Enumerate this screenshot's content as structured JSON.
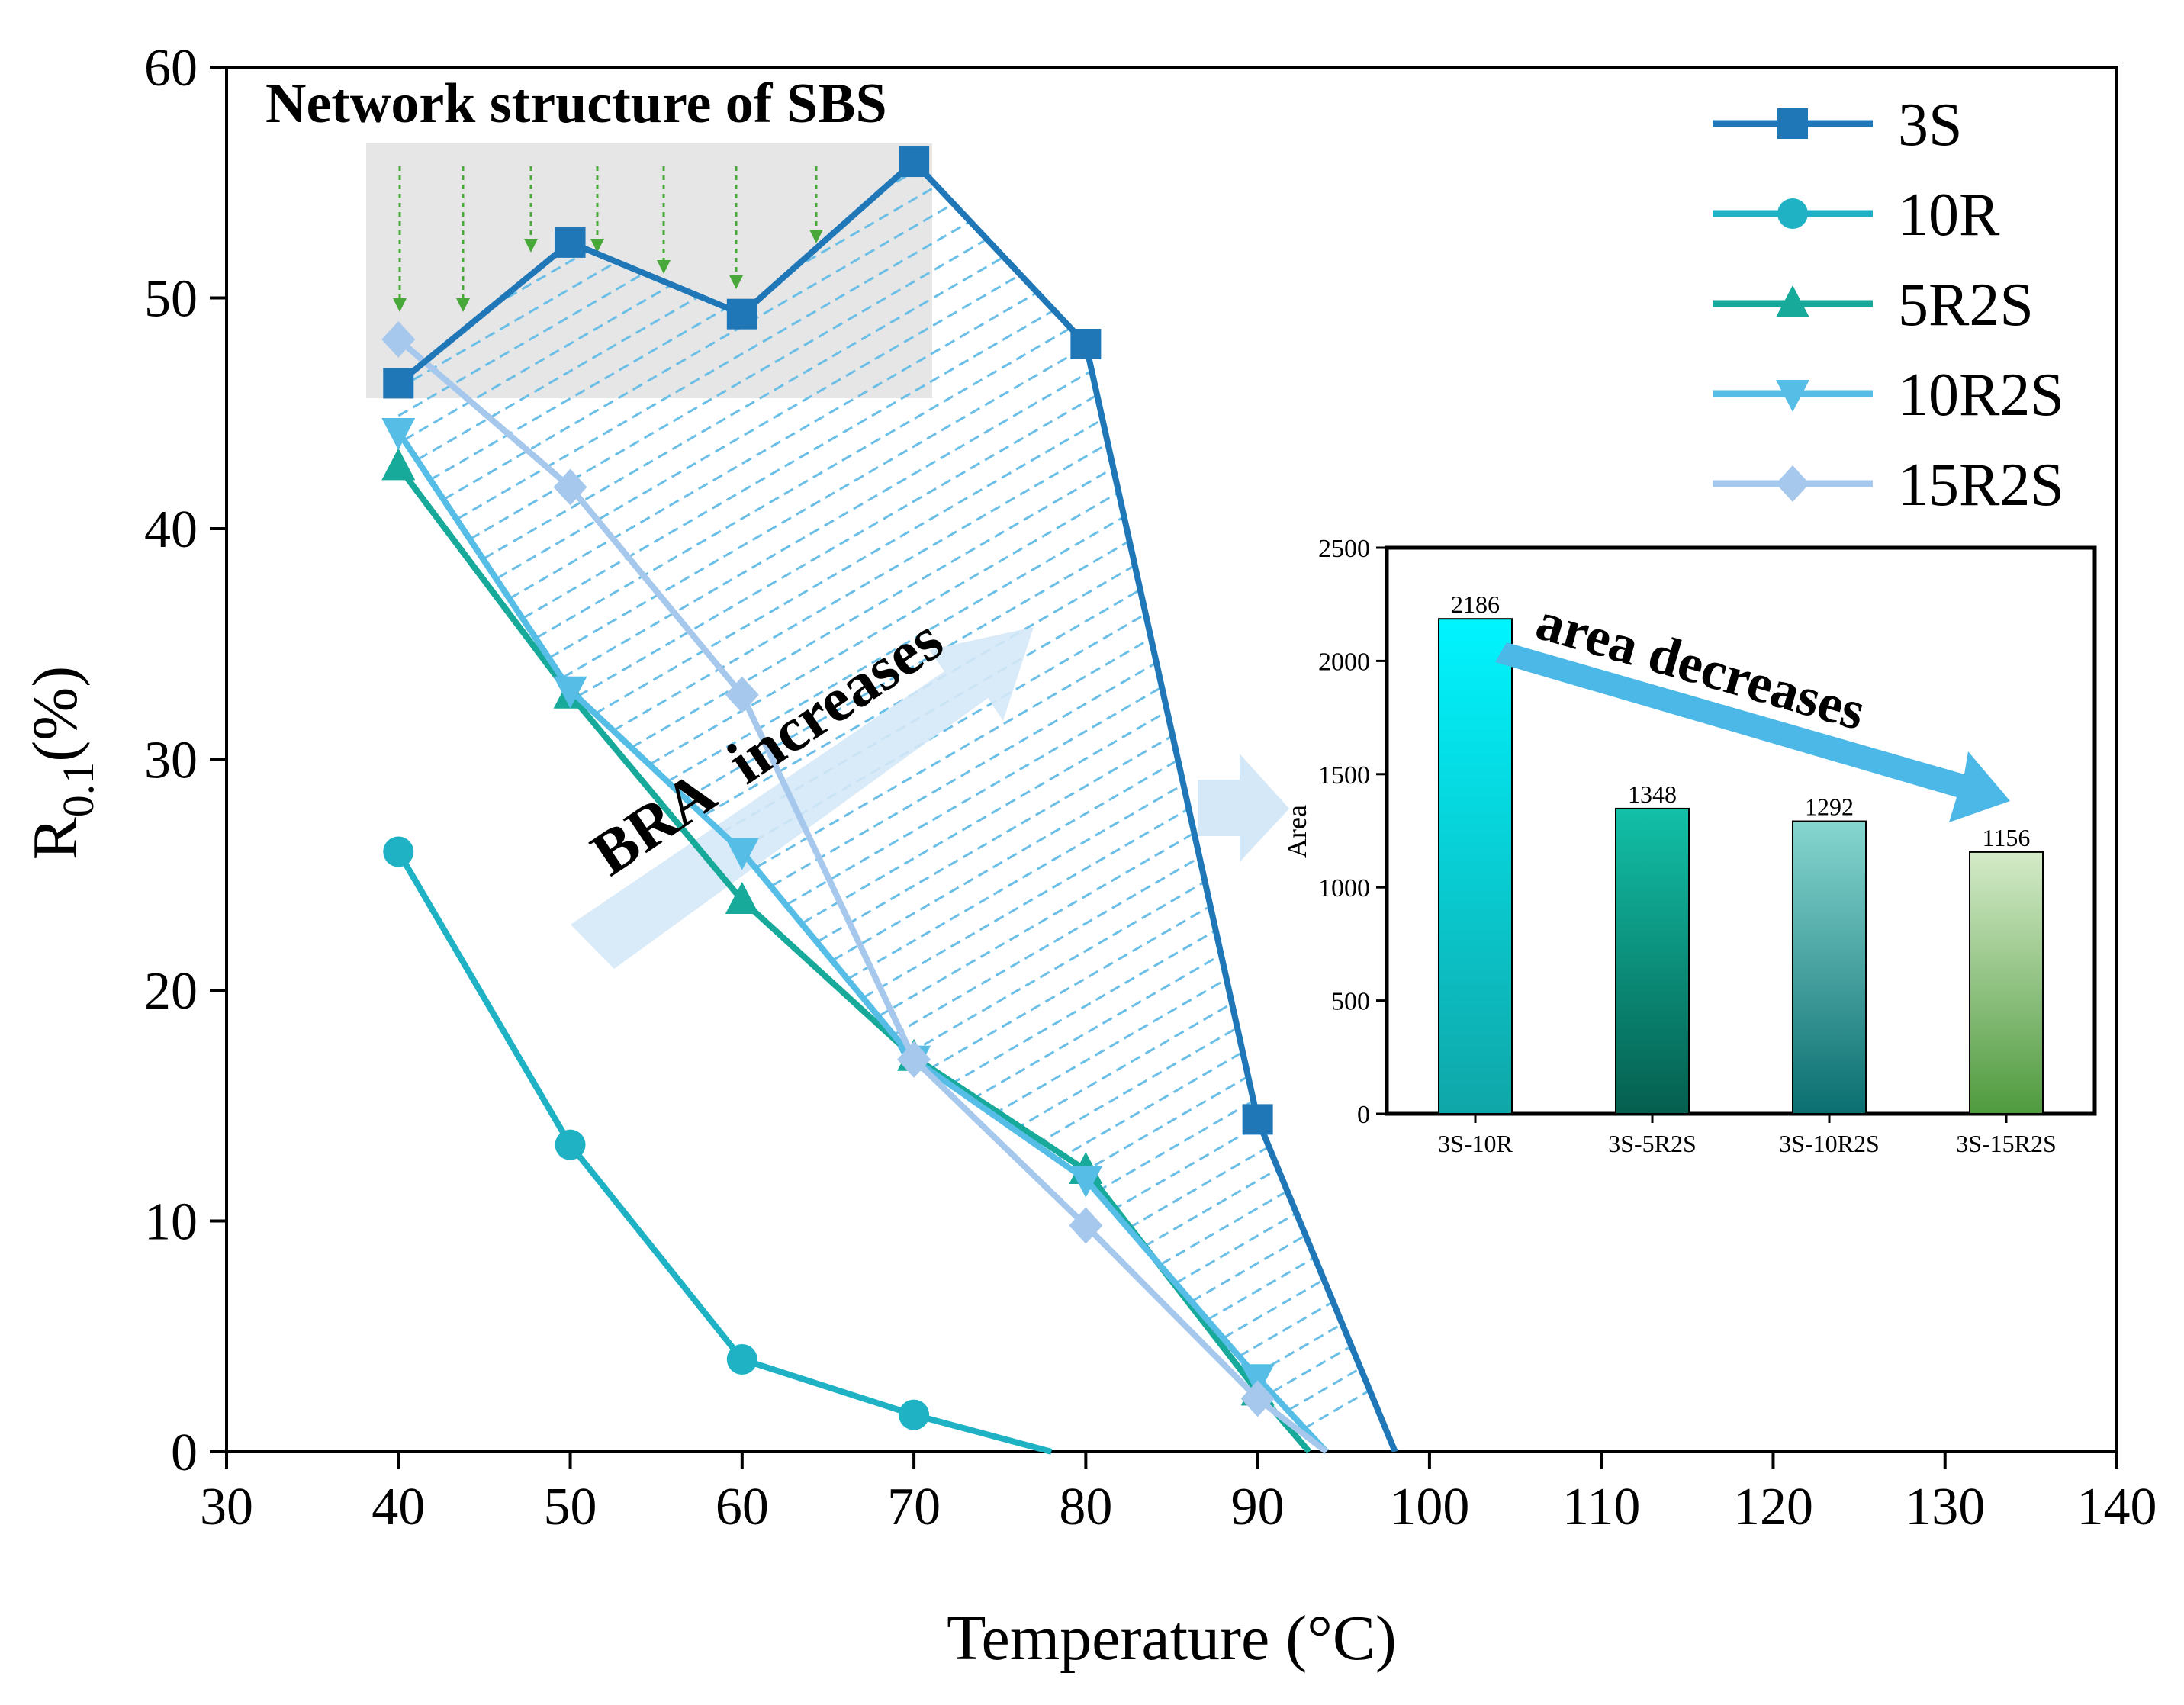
{
  "chart_data": [
    {
      "type": "line",
      "xlabel": "Temperature (°C)",
      "ylabel_main": "R",
      "ylabel_sub": "0.1",
      "ylabel_tail": "(%)",
      "xlim": [
        30,
        140
      ],
      "ylim": [
        0,
        60
      ],
      "xticks": [
        30,
        40,
        50,
        60,
        70,
        80,
        90,
        100,
        110,
        120,
        130,
        140
      ],
      "yticks": [
        0,
        10,
        20,
        30,
        40,
        50,
        60
      ],
      "legend_position": "top-right",
      "series": [
        {
          "name": "3S",
          "color": "#1f77b8",
          "marker": "square",
          "x": [
            40,
            50,
            60,
            70,
            80,
            90,
            98
          ],
          "y": [
            46.3,
            52.4,
            49.3,
            55.9,
            48.0,
            14.4,
            0
          ]
        },
        {
          "name": "10R",
          "color": "#1eb2c4",
          "marker": "circle",
          "x": [
            40,
            50,
            60,
            70,
            78
          ],
          "y": [
            26.0,
            13.3,
            4.0,
            1.6,
            0
          ]
        },
        {
          "name": "5R2S",
          "color": "#17a99a",
          "marker": "triangle-up",
          "x": [
            40,
            50,
            60,
            70,
            80,
            90,
            93
          ],
          "y": [
            42.7,
            32.8,
            23.9,
            17.1,
            12.2,
            2.6,
            0
          ]
        },
        {
          "name": "10R2S",
          "color": "#55bde6",
          "marker": "triangle-down",
          "x": [
            40,
            50,
            60,
            70,
            80,
            90,
            94
          ],
          "y": [
            44.2,
            33.0,
            26.0,
            17.0,
            11.8,
            3.2,
            0
          ]
        },
        {
          "name": "15R2S",
          "color": "#a6c8ec",
          "marker": "diamond",
          "x": [
            40,
            50,
            60,
            70,
            80,
            90,
            94
          ],
          "y": [
            48.2,
            41.8,
            32.8,
            17.0,
            9.8,
            2.3,
            0
          ]
        }
      ],
      "annotations": {
        "network_label": "Network structure of SBS",
        "bra_label_a": "BRA",
        "bra_label_b": "increases"
      }
    },
    {
      "type": "bar",
      "ylabel": "Area",
      "ylim": [
        0,
        2500
      ],
      "yticks": [
        0,
        500,
        1000,
        1500,
        2000,
        2500
      ],
      "categories": [
        "3S-10R",
        "3S-5R2S",
        "3S-10R2S",
        "3S-15R2S"
      ],
      "values": [
        2186,
        1348,
        1292,
        1156
      ],
      "value_labels": [
        "2186",
        "1348",
        "1292",
        "1156"
      ],
      "annotation": "area decreases"
    }
  ]
}
